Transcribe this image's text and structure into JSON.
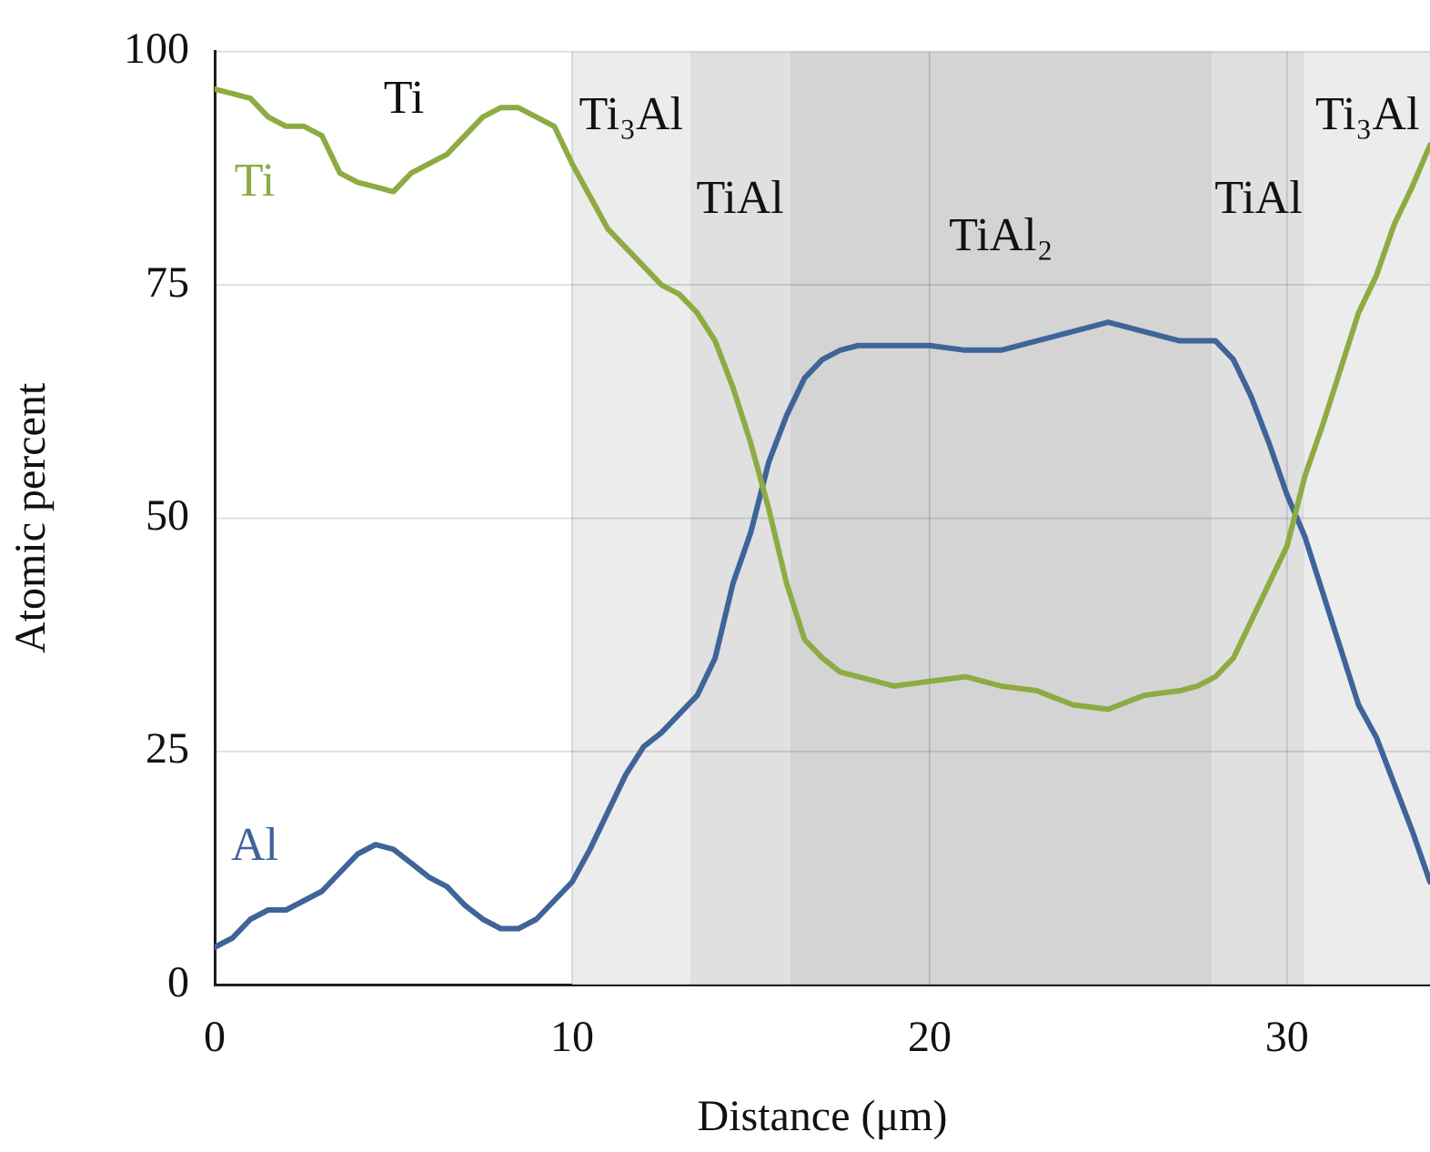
{
  "chart_data": {
    "type": "line",
    "xlabel": "Distance (μm)",
    "ylabel": "Atomic percent",
    "x": [
      0,
      0.5,
      1,
      1.5,
      2,
      2.5,
      3,
      3.5,
      4,
      4.5,
      5,
      5.5,
      6,
      6.5,
      7,
      7.5,
      8,
      8.5,
      9,
      9.5,
      10,
      10.5,
      11,
      11.5,
      12,
      12.5,
      13,
      13.5,
      14,
      14.5,
      15,
      15.5,
      16,
      16.5,
      17,
      17.5,
      18,
      19,
      20,
      21,
      22,
      23,
      24,
      25,
      26,
      27,
      27.5,
      28,
      28.5,
      29,
      29.5,
      30,
      30.5,
      31,
      31.5,
      32,
      32.5,
      33,
      33.5,
      34
    ],
    "series": [
      {
        "name": "Ti",
        "color": "#8eab43",
        "values": [
          96,
          95.5,
          95,
          93,
          92,
          92,
          91,
          87,
          86,
          85.5,
          85,
          87,
          88,
          89,
          91,
          93,
          94,
          94,
          93,
          92,
          88,
          84.5,
          81,
          79,
          77,
          75,
          74,
          72,
          69,
          64,
          58,
          51,
          43,
          37,
          35,
          33.5,
          33,
          32,
          32.5,
          33,
          32,
          31.5,
          30,
          29.5,
          31,
          31.5,
          32,
          33,
          35,
          39,
          43,
          47,
          54.5,
          60,
          66,
          72,
          76,
          81.5,
          85.5,
          90
        ]
      },
      {
        "name": "Al",
        "color": "#3f6499",
        "values": [
          4,
          5,
          7,
          8,
          8,
          9,
          10,
          12,
          14,
          15,
          14.5,
          13,
          11.5,
          10.5,
          8.5,
          7,
          6,
          6,
          7,
          9,
          11,
          14.5,
          18.5,
          22.5,
          25.5,
          27,
          29,
          31,
          35,
          43,
          48.5,
          56,
          61,
          65,
          67,
          68,
          68.5,
          68.5,
          68.5,
          68,
          68,
          69,
          70,
          71,
          70,
          69,
          69,
          69,
          67,
          63,
          58,
          52.5,
          48,
          42,
          36,
          30,
          26.5,
          21.5,
          16.5,
          11
        ]
      }
    ],
    "bands": [
      {
        "axis": "x",
        "from": 10,
        "to": 13.3,
        "label": "Ti₃Al",
        "color": "#ececec"
      },
      {
        "axis": "x",
        "from": 13.3,
        "to": 16.1,
        "label": "TiAl",
        "color": "#e0e0e0"
      },
      {
        "axis": "x",
        "from": 16.1,
        "to": 27.9,
        "label": "TiAl₂",
        "color": "#d4d4d4"
      },
      {
        "axis": "x",
        "from": 27.9,
        "to": 30.5,
        "label": "TiAl",
        "color": "#e0e0e0"
      },
      {
        "axis": "x",
        "from": 30.5,
        "to": 34,
        "label": "Ti₃Al",
        "color": "#ececec"
      }
    ],
    "annotations": [
      "Ti"
    ],
    "xlim": [
      0,
      34
    ],
    "xticks": [
      0,
      10,
      20,
      30
    ],
    "ylim": [
      0,
      100
    ],
    "yticks": [
      0,
      25,
      50,
      75,
      100
    ],
    "grid": true,
    "legend": false,
    "marker": "none",
    "line_style": "solid"
  }
}
